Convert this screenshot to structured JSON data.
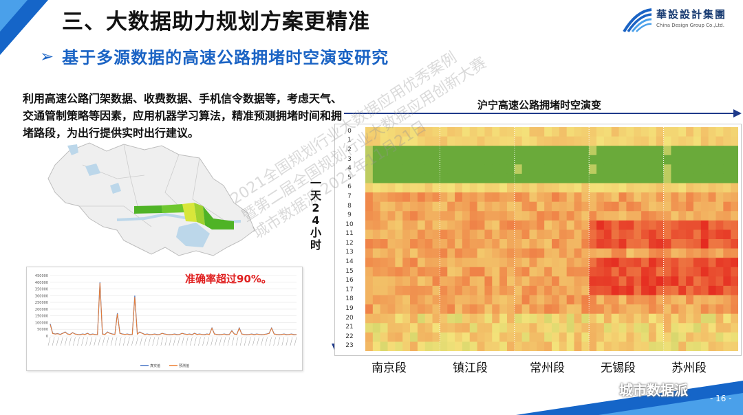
{
  "slide": {
    "title": "三、大数据助力规划方案更精准",
    "subtitle_marker": "➢",
    "subtitle": "基于多源数据的高速公路拥堵时空演变研究",
    "page_number": "- 16 -"
  },
  "logo": {
    "name_cn": "華設設計集團",
    "name_en": "China Design Group Co.,Ltd."
  },
  "description": "利用高速公路门架数据、收费数据、手机信令数据等，考虑天气、交通管制策略等因素，应用机器学习算法，精准预测拥堵时间和拥堵路段，为出行提供实时出行建议。",
  "accuracy_label": "准确率超过90%。",
  "accuracy_chart": {
    "y_ticks": [
      "450000",
      "400000",
      "350000",
      "300000",
      "250000",
      "200000",
      "150000",
      "100000",
      "50000",
      "0"
    ],
    "legend": [
      "真实值",
      "预测值"
    ],
    "legend_colors": [
      "#4472c4",
      "#ed7d31"
    ],
    "series": [
      {
        "name": "真实值",
        "values": [
          90000,
          20000,
          15000,
          18000,
          12000,
          20000,
          30000,
          15000,
          12000,
          25000,
          15000,
          12000,
          10000,
          15000,
          12000,
          20000,
          10000,
          15000,
          12000,
          10000,
          400000,
          15000,
          12000,
          30000,
          20000,
          15000,
          12000,
          170000,
          20000,
          15000,
          12000,
          15000,
          10000,
          12000,
          300000,
          15000,
          30000,
          20000,
          12000,
          15000,
          10000,
          12000,
          15000,
          10000,
          12000,
          20000,
          15000,
          12000,
          10000,
          12000,
          15000,
          10000,
          12000,
          20000,
          15000,
          12000,
          15000,
          10000,
          20000,
          12000,
          15000,
          12000,
          10000,
          15000,
          12000,
          60000,
          15000,
          12000,
          10000,
          12000,
          15000,
          10000,
          12000,
          40000,
          15000,
          12000,
          60000,
          15000,
          12000,
          10000,
          12000,
          15000,
          10000,
          15000,
          12000,
          10000,
          12000,
          15000,
          20000,
          60000,
          15000,
          12000,
          10000,
          12000,
          15000,
          10000,
          12000,
          15000,
          10000,
          12000
        ]
      },
      {
        "name": "预测值",
        "values": [
          85000,
          18000,
          14000,
          17000,
          11000,
          19000,
          28000,
          14000,
          11000,
          24000,
          14000,
          11000,
          9000,
          14000,
          11000,
          19000,
          9000,
          14000,
          11000,
          9000,
          395000,
          14000,
          11000,
          28000,
          19000,
          14000,
          11000,
          165000,
          19000,
          14000,
          11000,
          14000,
          9000,
          11000,
          290000,
          14000,
          28000,
          19000,
          11000,
          14000,
          9000,
          11000,
          14000,
          9000,
          11000,
          19000,
          14000,
          11000,
          9000,
          11000,
          14000,
          9000,
          11000,
          19000,
          14000,
          11000,
          14000,
          9000,
          19000,
          11000,
          14000,
          11000,
          9000,
          14000,
          11000,
          58000,
          14000,
          11000,
          9000,
          11000,
          14000,
          9000,
          11000,
          38000,
          14000,
          11000,
          58000,
          14000,
          11000,
          9000,
          11000,
          14000,
          9000,
          14000,
          11000,
          9000,
          11000,
          14000,
          19000,
          58000,
          14000,
          11000,
          9000,
          11000,
          14000,
          9000,
          11000,
          14000,
          9000,
          11000
        ]
      }
    ]
  },
  "heatmap": {
    "title": "沪宁高速公路拥堵时空演变",
    "y_axis_label": [
      "一",
      "天",
      "2",
      "4",
      "小",
      "时"
    ],
    "hours": [
      "0",
      "1",
      "2",
      "3",
      "4",
      "5",
      "6",
      "7",
      "8",
      "9",
      "10",
      "11",
      "12",
      "13",
      "14",
      "15",
      "16",
      "17",
      "18",
      "19",
      "20",
      "21",
      "22",
      "23"
    ],
    "segments": [
      "南京段",
      "镇江段",
      "常州段",
      "无锡段",
      "苏州段"
    ],
    "palette": {
      "low": "#6aaa3a",
      "mid": "#f4e27a",
      "high": "#f08a4b",
      "jam": "#e52b20"
    }
  },
  "watermark": [
    "2021全国规划行业大数据应用优秀案例",
    "暨第二届全国规划行业大数据应用创新大赛",
    "城市数据派 2021年11月21日"
  ],
  "wechat_account": "城市数据派"
}
